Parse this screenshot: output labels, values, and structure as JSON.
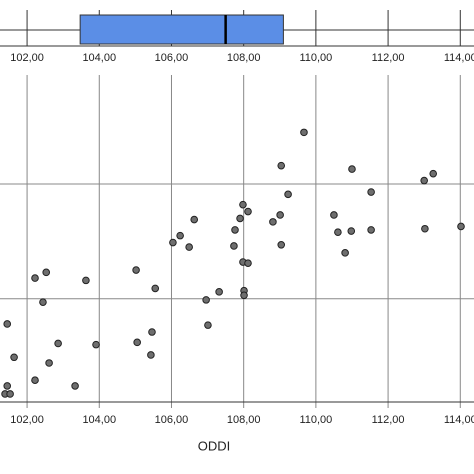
{
  "chart_data": [
    {
      "type": "box",
      "q1": 103.47,
      "median": 107.5,
      "q3": 109.1,
      "color": "#5b8ee6",
      "xlim": [
        101.25,
        114.38
      ],
      "xticks": [
        {
          "value": 102,
          "label": "102,00"
        },
        {
          "value": 104,
          "label": "104,00"
        },
        {
          "value": 106,
          "label": "106,00"
        },
        {
          "value": 108,
          "label": "108,00"
        },
        {
          "value": 110,
          "label": "110,00"
        },
        {
          "value": 112,
          "label": "112,00"
        },
        {
          "value": 114,
          "label": "114,00"
        }
      ]
    },
    {
      "type": "scatter",
      "xlabel": "ODDI",
      "color": "#6e6e6e",
      "grid": true,
      "xlim": [
        101.25,
        114.38
      ],
      "ylim": [
        0.1,
        2.95
      ],
      "yticks": [
        1,
        2
      ],
      "xticks": [
        {
          "value": 102,
          "label": "102,00"
        },
        {
          "value": 104,
          "label": "104,00"
        },
        {
          "value": 106,
          "label": "106,00"
        },
        {
          "value": 108,
          "label": "108,00"
        },
        {
          "value": 110,
          "label": "110,00"
        },
        {
          "value": 112,
          "label": "112,00"
        },
        {
          "value": 114,
          "label": "114,00"
        }
      ],
      "x": [
        109.67,
        109.04,
        111.0,
        113.0,
        113.25,
        109.23,
        111.53,
        106.63,
        107.98,
        108.12,
        107.9,
        108.81,
        109.01,
        110.5,
        107.76,
        110.98,
        111.53,
        114.02,
        113.02,
        110.61,
        106.04,
        106.24,
        106.49,
        107.73,
        109.04,
        110.81,
        107.98,
        108.12,
        102.22,
        102.53,
        103.63,
        105.02,
        105.55,
        107.32,
        108.01,
        108.01,
        102.44,
        106.96,
        101.45,
        105.46,
        105.05,
        107.01,
        102.86,
        103.91,
        101.64,
        105.43,
        102.61,
        102.22,
        103.33,
        101.45,
        101.39,
        101.53
      ],
      "y": [
        2.45,
        2.16,
        2.13,
        2.03,
        2.09,
        1.91,
        1.93,
        1.69,
        1.82,
        1.76,
        1.7,
        1.67,
        1.73,
        1.73,
        1.6,
        1.59,
        1.6,
        1.63,
        1.61,
        1.58,
        1.49,
        1.55,
        1.45,
        1.46,
        1.47,
        1.4,
        1.32,
        1.31,
        1.18,
        1.23,
        1.16,
        1.25,
        1.09,
        1.06,
        1.07,
        1.03,
        0.97,
        0.99,
        0.78,
        0.71,
        0.62,
        0.77,
        0.61,
        0.6,
        0.49,
        0.51,
        0.44,
        0.29,
        0.24,
        0.24,
        0.17,
        0.17
      ]
    }
  ]
}
